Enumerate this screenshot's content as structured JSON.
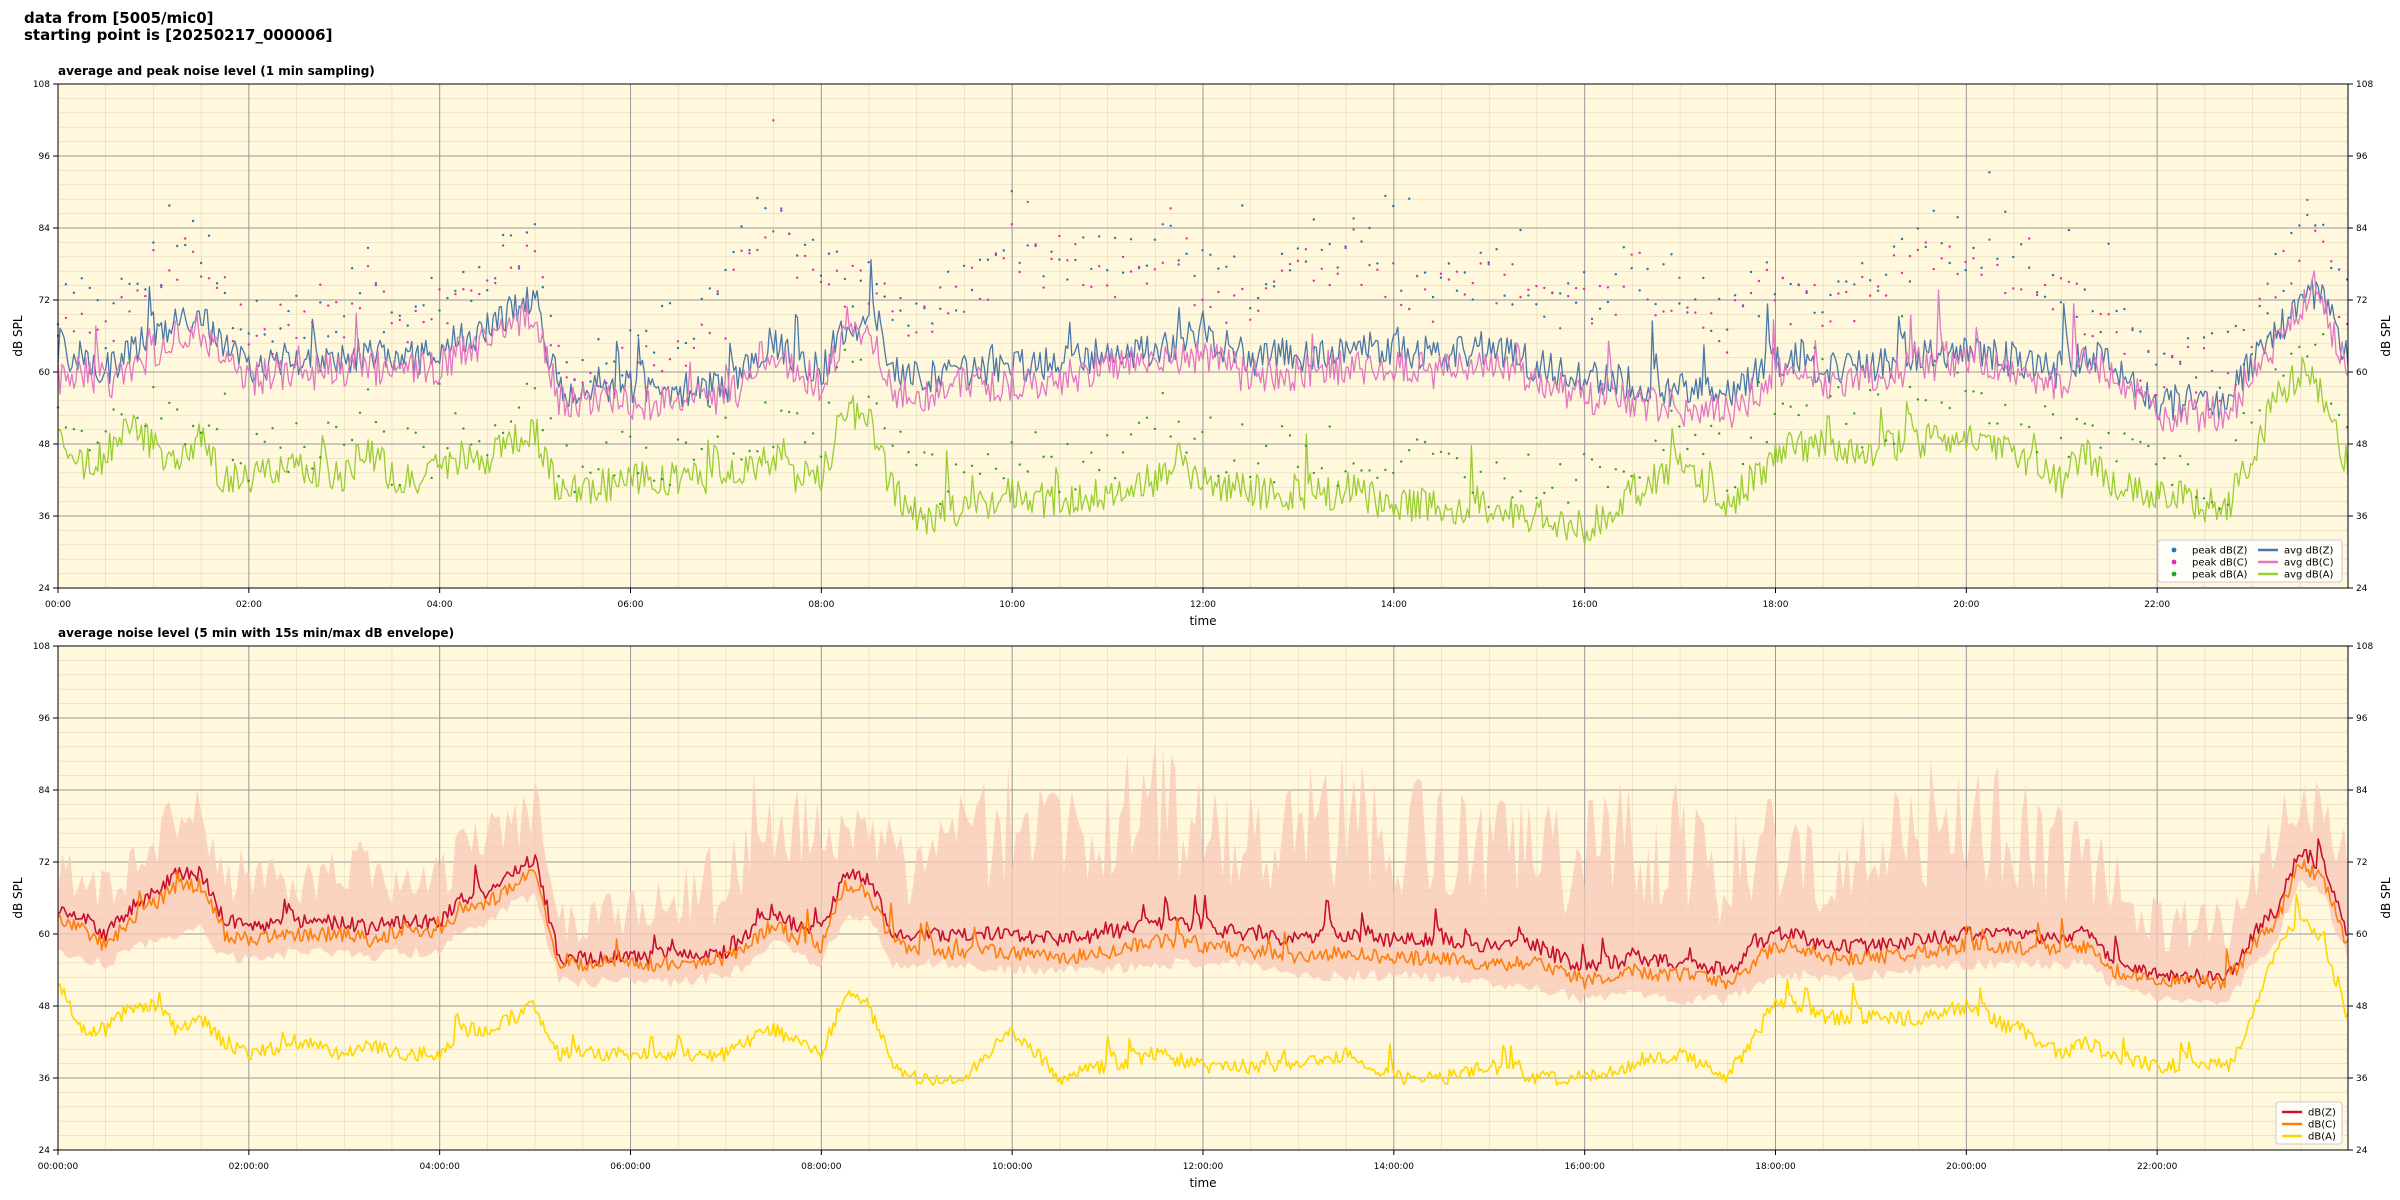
{
  "header": {
    "line1": "data from [5005/mic0]",
    "line2": "starting point is [20250217_000006]"
  },
  "chart_data": [
    {
      "type": "line",
      "title": "average and peak noise level (1 min sampling)",
      "xlabel": "time",
      "ylabel": "dB SPL",
      "xlim_hours": [
        0,
        24
      ],
      "ylim": [
        24,
        108
      ],
      "yticks": [
        24,
        36,
        48,
        60,
        72,
        84,
        96,
        108
      ],
      "xtick_labels": [
        "00:00",
        "02:00",
        "04:00",
        "06:00",
        "08:00",
        "10:00",
        "12:00",
        "14:00",
        "16:00",
        "18:00",
        "20:00",
        "22:00"
      ],
      "grid": true,
      "legend_position": "lower-right",
      "background": "#fff8dc",
      "x_hours": [
        0,
        0.25,
        0.5,
        0.75,
        1,
        1.25,
        1.5,
        1.75,
        2,
        2.5,
        3,
        3.25,
        3.5,
        4,
        4.25,
        4.5,
        4.75,
        5,
        5.25,
        5.5,
        6,
        6.5,
        7,
        7.25,
        7.5,
        7.75,
        8,
        8.25,
        8.5,
        8.75,
        9,
        9.5,
        10,
        10.5,
        11,
        11.5,
        12,
        12.5,
        13,
        13.5,
        14,
        14.5,
        15,
        15.5,
        16,
        16.5,
        17,
        17.5,
        18,
        18.25,
        18.5,
        19,
        19.5,
        20,
        20.5,
        21,
        21.25,
        21.5,
        22,
        22.5,
        22.75,
        23,
        23.25,
        23.5,
        23.75,
        24
      ],
      "series": [
        {
          "name": "avg dB(Z)",
          "kind": "line",
          "color": "#4c78a8",
          "values": [
            62,
            63,
            60,
            63,
            66,
            68,
            69,
            64,
            61,
            62,
            62,
            63,
            62,
            63,
            66,
            67,
            70,
            72,
            57,
            57,
            57,
            57,
            57,
            61,
            65,
            62,
            60,
            68,
            68,
            60,
            59,
            60,
            61,
            62,
            63,
            64,
            66,
            62,
            63,
            64,
            64,
            63,
            64,
            61,
            59,
            58,
            57,
            56,
            62,
            62,
            60,
            61,
            63,
            64,
            62,
            60,
            63,
            62,
            55,
            55,
            55,
            62,
            66,
            73,
            72,
            62
          ]
        },
        {
          "name": "avg dB(C)",
          "kind": "line",
          "color": "#e377c2",
          "values": [
            59,
            60,
            57,
            60,
            63,
            66,
            67,
            62,
            59,
            60,
            60,
            61,
            60,
            61,
            64,
            65,
            68,
            70,
            55,
            55,
            55,
            55,
            55,
            59,
            63,
            60,
            58,
            66,
            66,
            57,
            56,
            58,
            58,
            59,
            61,
            62,
            63,
            59,
            60,
            61,
            61,
            60,
            61,
            58,
            56,
            55,
            54,
            53,
            59,
            59,
            58,
            59,
            61,
            62,
            60,
            58,
            61,
            60,
            53,
            53,
            53,
            60,
            64,
            71,
            70,
            60
          ]
        },
        {
          "name": "avg dB(A)",
          "kind": "line",
          "color": "#9acd32",
          "values": [
            50,
            44,
            46,
            52,
            48,
            44,
            48,
            42,
            42,
            44,
            43,
            48,
            42,
            42,
            46,
            46,
            48,
            50,
            40,
            40,
            42,
            42,
            42,
            44,
            46,
            42,
            42,
            54,
            52,
            40,
            36,
            36,
            40,
            38,
            40,
            42,
            42,
            40,
            40,
            40,
            38,
            38,
            36,
            36,
            34,
            40,
            44,
            38,
            46,
            48,
            48,
            46,
            48,
            50,
            46,
            42,
            46,
            42,
            40,
            38,
            38,
            46,
            56,
            60,
            56,
            44
          ]
        },
        {
          "name": "peak dB(Z)",
          "kind": "scatter",
          "color": "#1f77b4",
          "values": [
            70,
            72,
            68,
            72,
            78,
            80,
            82,
            74,
            68,
            70,
            70,
            78,
            68,
            72,
            76,
            78,
            80,
            84,
            62,
            62,
            64,
            66,
            72,
            84,
            88,
            82,
            76,
            76,
            74,
            72,
            70,
            74,
            82,
            80,
            78,
            82,
            76,
            74,
            80,
            82,
            78,
            74,
            76,
            74,
            72,
            78,
            74,
            70,
            76,
            72,
            72,
            74,
            80,
            82,
            78,
            74,
            72,
            68,
            62,
            62,
            62,
            68,
            76,
            82,
            84,
            70
          ]
        },
        {
          "name": "peak dB(C)",
          "kind": "scatter",
          "color": "#e22cb4",
          "values": [
            68,
            70,
            66,
            70,
            76,
            78,
            80,
            72,
            66,
            68,
            68,
            76,
            66,
            70,
            74,
            76,
            78,
            82,
            60,
            60,
            62,
            64,
            70,
            82,
            86,
            80,
            74,
            74,
            72,
            70,
            68,
            72,
            80,
            78,
            76,
            80,
            74,
            72,
            78,
            80,
            76,
            72,
            74,
            72,
            70,
            76,
            72,
            68,
            74,
            70,
            70,
            72,
            78,
            80,
            76,
            72,
            70,
            66,
            60,
            60,
            60,
            66,
            74,
            80,
            82,
            68
          ]
        },
        {
          "name": "peak dB(A)",
          "kind": "scatter",
          "color": "#2ca02c",
          "values": [
            56,
            50,
            52,
            58,
            54,
            50,
            54,
            46,
            46,
            48,
            48,
            54,
            46,
            46,
            50,
            50,
            54,
            56,
            44,
            44,
            46,
            46,
            48,
            50,
            52,
            48,
            48,
            60,
            58,
            46,
            42,
            42,
            46,
            44,
            46,
            48,
            48,
            46,
            46,
            46,
            44,
            44,
            42,
            42,
            40,
            46,
            50,
            44,
            52,
            54,
            54,
            52,
            54,
            56,
            52,
            48,
            52,
            48,
            44,
            42,
            42,
            52,
            62,
            66,
            62,
            50
          ]
        }
      ],
      "legend_entries": [
        "peak dB(Z)",
        "peak dB(C)",
        "peak dB(A)",
        "avg dB(Z)",
        "avg dB(C)",
        "avg dB(A)"
      ]
    },
    {
      "type": "line",
      "title": "average noise level (5 min with 15s min/max dB envelope)",
      "xlabel": "time",
      "ylabel": "dB SPL",
      "xlim_hours": [
        0,
        24
      ],
      "ylim": [
        24,
        108
      ],
      "yticks": [
        24,
        36,
        48,
        60,
        72,
        84,
        96,
        108
      ],
      "xtick_labels": [
        "00:00:00",
        "02:00:00",
        "04:00:00",
        "06:00:00",
        "08:00:00",
        "10:00:00",
        "12:00:00",
        "14:00:00",
        "16:00:00",
        "18:00:00",
        "20:00:00",
        "22:00:00"
      ],
      "grid": true,
      "legend_position": "lower-right",
      "background": "#fff8dc",
      "envelope_color": "#f8c8b8",
      "x_hours": [
        0,
        0.25,
        0.5,
        0.75,
        1,
        1.25,
        1.5,
        1.75,
        2,
        2.5,
        3,
        3.25,
        3.5,
        4,
        4.25,
        4.5,
        4.75,
        5,
        5.25,
        5.5,
        6,
        6.5,
        7,
        7.25,
        7.5,
        7.75,
        8,
        8.25,
        8.5,
        8.75,
        9,
        9.5,
        10,
        10.5,
        11,
        11.5,
        12,
        12.5,
        13,
        13.5,
        14,
        14.5,
        15,
        15.5,
        16,
        16.5,
        17,
        17.5,
        18,
        18.25,
        18.5,
        19,
        19.5,
        20,
        20.5,
        21,
        21.25,
        21.5,
        22,
        22.5,
        22.75,
        23,
        23.25,
        23.5,
        23.75,
        24
      ],
      "envelope_min": [
        58,
        57,
        56,
        58,
        60,
        60,
        62,
        57,
        57,
        58,
        58,
        57,
        58,
        58,
        62,
        63,
        66,
        67,
        53,
        53,
        53,
        53,
        54,
        56,
        60,
        57,
        56,
        64,
        64,
        56,
        56,
        56,
        55,
        55,
        55,
        56,
        56,
        56,
        54,
        54,
        54,
        54,
        53,
        52,
        50,
        51,
        50,
        50,
        54,
        54,
        54,
        54,
        55,
        56,
        56,
        56,
        56,
        53,
        50,
        50,
        50,
        56,
        60,
        70,
        67,
        57
      ],
      "envelope_max": [
        72,
        72,
        70,
        74,
        80,
        80,
        82,
        76,
        70,
        72,
        72,
        80,
        70,
        72,
        76,
        78,
        80,
        84,
        64,
        64,
        66,
        68,
        74,
        86,
        88,
        84,
        80,
        80,
        78,
        76,
        74,
        80,
        88,
        86,
        84,
        88,
        82,
        80,
        84,
        86,
        84,
        80,
        82,
        80,
        78,
        84,
        82,
        76,
        80,
        76,
        76,
        78,
        84,
        86,
        82,
        78,
        76,
        72,
        64,
        64,
        64,
        72,
        80,
        84,
        84,
        74
      ],
      "series": [
        {
          "name": "dB(Z)",
          "kind": "line",
          "color": "#c8102e",
          "values": [
            64,
            63,
            60,
            64,
            67,
            70,
            70,
            62,
            61,
            62,
            62,
            61,
            62,
            62,
            66,
            67,
            70,
            73,
            56,
            56,
            56,
            56,
            57,
            60,
            64,
            61,
            60,
            70,
            69,
            60,
            60,
            60,
            60,
            59,
            60,
            62,
            61,
            60,
            59,
            60,
            59,
            59,
            58,
            58,
            54,
            56,
            55,
            54,
            60,
            60,
            58,
            58,
            59,
            60,
            60,
            59,
            60,
            56,
            53,
            53,
            53,
            60,
            64,
            74,
            71,
            60
          ]
        },
        {
          "name": "dB(C)",
          "kind": "line",
          "color": "#ff7f0e",
          "values": [
            62,
            61,
            58,
            62,
            65,
            68,
            68,
            60,
            59,
            60,
            60,
            59,
            60,
            60,
            64,
            65,
            68,
            71,
            55,
            55,
            55,
            55,
            56,
            58,
            62,
            59,
            58,
            68,
            67,
            58,
            57,
            57,
            57,
            56,
            57,
            59,
            58,
            57,
            56,
            57,
            56,
            56,
            55,
            55,
            52,
            54,
            53,
            52,
            58,
            58,
            56,
            56,
            57,
            58,
            58,
            57,
            58,
            54,
            52,
            52,
            52,
            58,
            62,
            72,
            69,
            58
          ]
        },
        {
          "name": "dB(A)",
          "kind": "line",
          "color": "#ffd700",
          "values": [
            52,
            44,
            44,
            48,
            48,
            44,
            46,
            42,
            40,
            42,
            40,
            42,
            40,
            40,
            44,
            44,
            46,
            48,
            40,
            40,
            40,
            40,
            40,
            42,
            44,
            42,
            40,
            50,
            48,
            38,
            36,
            36,
            44,
            36,
            38,
            40,
            38,
            38,
            38,
            40,
            36,
            36,
            38,
            36,
            36,
            38,
            40,
            36,
            48,
            48,
            46,
            46,
            46,
            48,
            44,
            40,
            42,
            40,
            38,
            38,
            38,
            46,
            58,
            62,
            58,
            46
          ]
        }
      ],
      "legend_entries": [
        "dB(Z)",
        "dB(C)",
        "dB(A)"
      ]
    }
  ]
}
